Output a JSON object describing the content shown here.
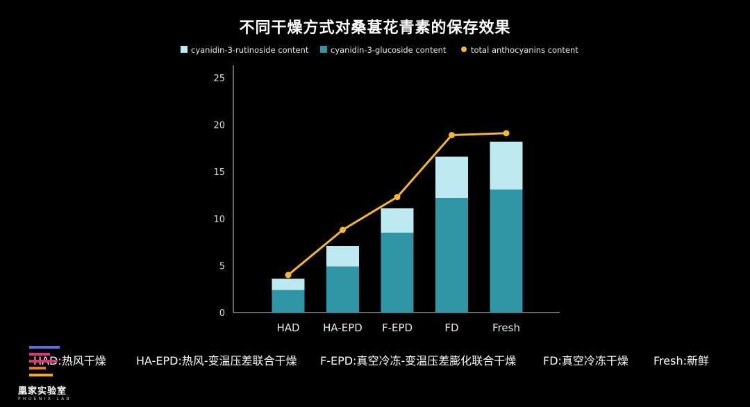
{
  "chart_data": {
    "type": "bar",
    "title": "不同干燥方式对桑葚花青素的保存效果",
    "categories": [
      "HAD",
      "HA-EPD",
      "F-EPD",
      "FD",
      "Fresh"
    ],
    "series": [
      {
        "name": "cyanidin-3-rutinoside content",
        "kind": "bar",
        "stack": "a",
        "values": [
          1.2,
          2.2,
          2.6,
          4.4,
          5.1
        ],
        "color": "#bde9f0"
      },
      {
        "name": "cyanidin-3-glucoside content",
        "kind": "bar",
        "stack": "a",
        "values": [
          2.4,
          4.9,
          8.5,
          12.2,
          13.1
        ],
        "color": "#2e95a5"
      },
      {
        "name": "total anthocyanins content",
        "kind": "line",
        "values": [
          4.0,
          8.8,
          12.3,
          18.9,
          19.1
        ],
        "color": "#f5b82a"
      }
    ],
    "legend_order": [
      0,
      1,
      2
    ],
    "yticks": [
      0,
      5,
      10,
      15,
      20,
      25
    ],
    "ylim": [
      0,
      25
    ],
    "legend_position": "top",
    "grid": false
  },
  "footer": {
    "had": "HAD:热风干燥",
    "ha_epd": "HA-EPD:热风-变温压差联合干燥",
    "f_epd": "F-EPD:真空冷冻-变温压差膨化联合干燥",
    "fd": "FD:真空冷冻干燥",
    "fresh": "Fresh:新鲜"
  },
  "logo": {
    "name": "凰家实验室",
    "sub": "PHOENIX LAB",
    "colors": [
      "#5b6fe0",
      "#e8307a",
      "#e8307a",
      "#f07a2a",
      "#f5a623"
    ]
  }
}
